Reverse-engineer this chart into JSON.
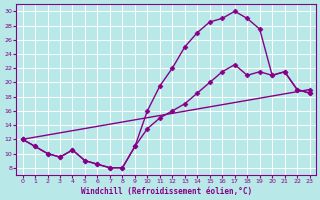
{
  "xlabel": "Windchill (Refroidissement éolien,°C)",
  "bg_color": "#b8e8e8",
  "line_color": "#880088",
  "grid_color": "#ffffff",
  "xlim": [
    -0.5,
    23.5
  ],
  "ylim": [
    7,
    31
  ],
  "xticks": [
    0,
    1,
    2,
    3,
    4,
    5,
    6,
    7,
    8,
    9,
    10,
    11,
    12,
    13,
    14,
    15,
    16,
    17,
    18,
    19,
    20,
    21,
    22,
    23
  ],
  "yticks": [
    8,
    10,
    12,
    14,
    16,
    18,
    20,
    22,
    24,
    26,
    28,
    30
  ],
  "line1_x": [
    0,
    1,
    2,
    3,
    4,
    5,
    6,
    7,
    8,
    9,
    10,
    11,
    12,
    13,
    14,
    15,
    16,
    17,
    18,
    19,
    20,
    21,
    22,
    23
  ],
  "line1_y": [
    12,
    11,
    10,
    9.5,
    10.5,
    9,
    8.5,
    8,
    8,
    11,
    16,
    19.5,
    22,
    25,
    27,
    28.5,
    29,
    30,
    29.0,
    27.5,
    21.0,
    21.5,
    19.0,
    18.5
  ],
  "line2_x": [
    0,
    23
  ],
  "line2_y": [
    12,
    19.0
  ],
  "line3_x": [
    0,
    1,
    2,
    3,
    4,
    5,
    6,
    7,
    8,
    9,
    10,
    11,
    12,
    13,
    14,
    15,
    16,
    17,
    18,
    19,
    20,
    21,
    22,
    23
  ],
  "line3_y": [
    12,
    11,
    10,
    9.5,
    10.5,
    9,
    8.5,
    8,
    8,
    11,
    13.5,
    15.0,
    16.0,
    17.0,
    18.5,
    20.0,
    21.5,
    22.5,
    21.0,
    21.5,
    21.0,
    21.5,
    19.0,
    18.5
  ],
  "marker": "D",
  "markersize": 2.5,
  "linewidth": 1.0
}
